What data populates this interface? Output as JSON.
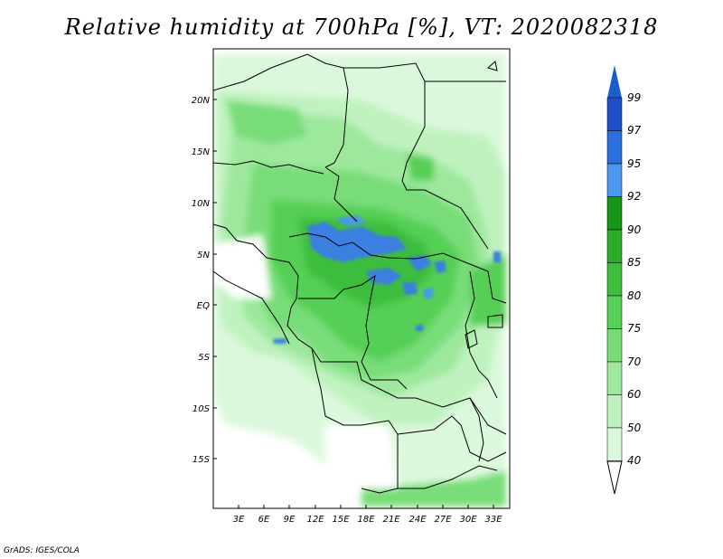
{
  "title": "Relative humidity at 700hPa [%], VT: 2020082318",
  "credit": "GrADS: IGES/COLA",
  "lat_labels": [
    "20N",
    "15N",
    "10N",
    "5N",
    "EQ",
    "5S",
    "10S",
    "15S"
  ],
  "lon_labels": [
    "3E",
    "6E",
    "9E",
    "12E",
    "15E",
    "18E",
    "21E",
    "24E",
    "27E",
    "30E",
    "33E"
  ],
  "colorbar": {
    "labels": [
      "99",
      "97",
      "95",
      "92",
      "90",
      "85",
      "80",
      "75",
      "70",
      "60",
      "50",
      "40"
    ],
    "colors": [
      "#1e4fc8",
      "#2c6fde",
      "#4a97ec",
      "#169616",
      "#2aab2a",
      "#3cbd3c",
      "#55cf55",
      "#78dd78",
      "#9ee89e",
      "#c0f2c0",
      "#dcf8dc",
      "#f0fcf0"
    ],
    "top_color": "#1a5fc8"
  },
  "colors": {
    "land_light": "#e8fae8",
    "green_light": "#bff0bf",
    "green_mid": "#7fde7f",
    "green_strong": "#3fc43f",
    "blue_humid": "#3a7fe0",
    "border": "#000000"
  }
}
